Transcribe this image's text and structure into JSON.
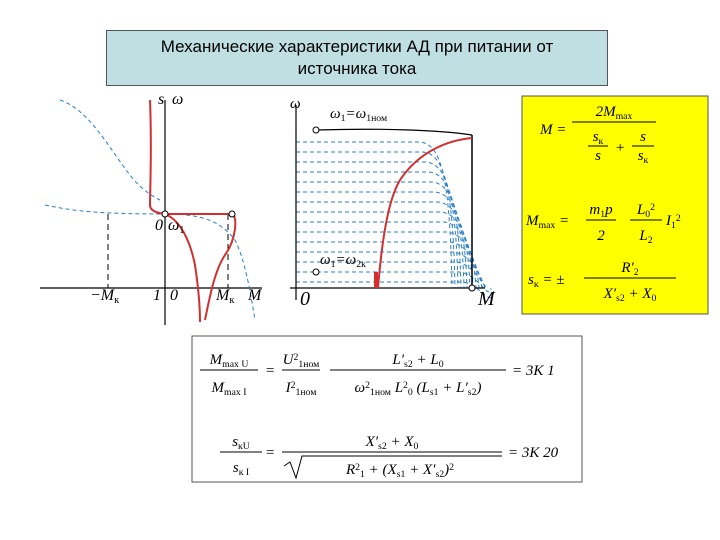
{
  "title": "Механические характеристики АД при питании от источника тока",
  "left_diagram": {
    "labels": [
      [
        {
          "t": "s"
        }
      ],
      [
        {
          "t": "ω"
        }
      ],
      [
        {
          "t": "0"
        }
      ],
      [
        {
          "t": "ω"
        },
        {
          "t": "1",
          "sub": true
        }
      ],
      [
        {
          "t": "−M"
        },
        {
          "t": "к",
          "sub": true
        }
      ],
      [
        {
          "t": "1"
        }
      ],
      [
        {
          "t": "0"
        }
      ],
      [
        {
          "t": "M"
        },
        {
          "t": "к",
          "sub": true
        }
      ],
      [
        {
          "t": "M"
        }
      ]
    ]
  },
  "middle_diagram": {
    "labels": [
      [
        {
          "t": "ω"
        }
      ],
      [
        {
          "t": "ω"
        },
        {
          "t": "1",
          "sub": true
        },
        {
          "t": "=ω"
        },
        {
          "t": "1ном",
          "sub": true
        }
      ],
      [
        {
          "t": "ω"
        },
        {
          "t": "1",
          "sub": true
        },
        {
          "t": "=ω"
        },
        {
          "t": "2к",
          "sub": true
        }
      ],
      [
        {
          "t": "0"
        }
      ],
      [
        {
          "t": "M"
        }
      ]
    ]
  },
  "formula_box": [
    [
      [
        {
          "t": "M ="
        }
      ],
      [
        {
          "t": "2M"
        },
        {
          "t": "max",
          "sub": true
        }
      ],
      [
        {
          "t": "s"
        },
        {
          "t": "к",
          "sub": true
        }
      ],
      [
        {
          "t": "s"
        }
      ],
      [
        {
          "t": "+"
        }
      ],
      [
        {
          "t": "s"
        }
      ],
      [
        {
          "t": "s"
        },
        {
          "t": "к",
          "sub": true
        }
      ]
    ],
    [
      [
        {
          "t": "M"
        },
        {
          "t": "max",
          "sub": true
        },
        {
          "t": " ="
        }
      ],
      [
        {
          "t": "m"
        },
        {
          "t": "1",
          "sub": true
        },
        {
          "t": "p"
        }
      ],
      [
        {
          "t": "2"
        }
      ],
      [
        {
          "t": "L"
        },
        {
          "t": "0",
          "sub": true
        },
        {
          "t": "2",
          "sup": true
        }
      ],
      [
        {
          "t": "L"
        },
        {
          "t": "2",
          "sub": true
        }
      ],
      [
        {
          "t": "I"
        },
        {
          "t": "1",
          "sub": true
        },
        {
          "t": "2",
          "sup": true
        }
      ]
    ],
    [
      [
        {
          "t": "s"
        },
        {
          "t": "к",
          "sub": true
        },
        {
          "t": " = ±"
        }
      ],
      [
        {
          "t": "R′"
        },
        {
          "t": "2",
          "sub": true
        }
      ],
      [
        {
          "t": "X′"
        },
        {
          "t": "s2",
          "sub": true
        },
        {
          "t": " + X"
        },
        {
          "t": "0",
          "sub": true
        }
      ]
    ]
  ],
  "bottom_formulas": [
    [
      [
        {
          "t": "M"
        },
        {
          "t": "max U",
          "sub": true
        }
      ],
      [
        {
          "t": "M"
        },
        {
          "t": "max I",
          "sub": true
        }
      ],
      [
        {
          "t": "="
        }
      ],
      [
        {
          "t": "U"
        },
        {
          "t": "2",
          "sup": true
        },
        {
          "t": "1ном",
          "sub": true
        }
      ],
      [
        {
          "t": "I"
        },
        {
          "t": "2",
          "sup": true
        },
        {
          "t": "1ном",
          "sub": true
        }
      ],
      [
        {
          "t": "L′"
        },
        {
          "t": "s2",
          "sub": true
        },
        {
          "t": " + L"
        },
        {
          "t": "0",
          "sub": true
        }
      ],
      [
        {
          "t": "ω"
        },
        {
          "t": "2",
          "sup": true
        },
        {
          "t": "1ном",
          "sub": true
        },
        {
          "t": " L"
        },
        {
          "t": "2",
          "sup": true
        },
        {
          "t": "0",
          "sub": true
        },
        {
          "t": " (L"
        },
        {
          "t": "s1",
          "sub": true
        },
        {
          "t": " + L′"
        },
        {
          "t": "s2",
          "sub": true
        },
        {
          "t": ")"
        }
      ],
      [
        {
          "t": "= 3К 1"
        }
      ]
    ],
    [
      [
        {
          "t": "s"
        },
        {
          "t": "кU",
          "sub": true
        }
      ],
      [
        {
          "t": "s"
        },
        {
          "t": "к I",
          "sub": true
        }
      ],
      [
        {
          "t": "="
        }
      ],
      [
        {
          "t": "X′"
        },
        {
          "t": "s2",
          "sub": true
        },
        {
          "t": " + X"
        },
        {
          "t": "0",
          "sub": true
        }
      ],
      [
        {
          "t": "R"
        },
        {
          "t": "2",
          "sup": true
        },
        {
          "t": "1",
          "sub": true
        },
        {
          "t": " + (X"
        },
        {
          "t": "s1",
          "sub": true
        },
        {
          "t": " + X′"
        },
        {
          "t": "s2",
          "sub": true
        },
        {
          "t": ")"
        },
        {
          "t": "2",
          "sup": true
        }
      ],
      [
        {
          "t": "= 3К 20"
        }
      ]
    ]
  ]
}
